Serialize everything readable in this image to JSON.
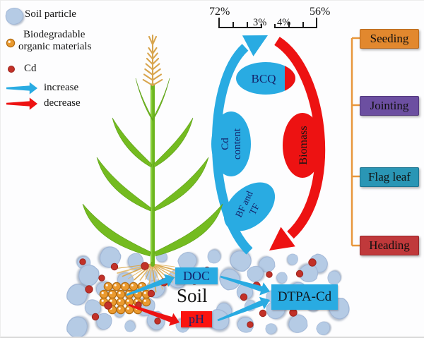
{
  "legend": {
    "soil_particle": "Soil particle",
    "biodegradable_line1": "Biodegradable",
    "biodegradable_line2": "organic materials",
    "cd": "Cd",
    "increase": "increase",
    "decrease": "decrease"
  },
  "scales": {
    "blue_from": "72%",
    "blue_to": "3%",
    "red_from": "4%",
    "red_to": "56%"
  },
  "cycle": {
    "bcq": "BCQ",
    "cd_line1": "Cd",
    "cd_line2": "content",
    "biomass": "Biomass",
    "bf_line1": "BF and",
    "bf_line2": "TF"
  },
  "stages": [
    {
      "label": "Seeding",
      "color": "#e2882e",
      "border": "#b96a1e"
    },
    {
      "label": "Jointing",
      "color": "#6c4fa1",
      "border": "#53397f"
    },
    {
      "label": "Flag leaf",
      "color": "#2a96b5",
      "border": "#1e7490"
    },
    {
      "label": "Heading",
      "color": "#c0393b",
      "border": "#97272b"
    }
  ],
  "soil": {
    "doc": "DOC",
    "title": "Soil",
    "ph": "pH",
    "dtpa": "DTPA-Cd"
  },
  "colors": {
    "increase_blue": "#29abe2",
    "decrease_red": "#ed1212",
    "ellipse_text_navy": "#14246b",
    "soil_particle": "#b5cbe5",
    "organic_ball": "#ea9a2f",
    "cd_dot": "#c23128",
    "bracket_orange": "#e8973c",
    "plant_green": "#74bb20",
    "wheat_tan": "#d8a54e"
  }
}
